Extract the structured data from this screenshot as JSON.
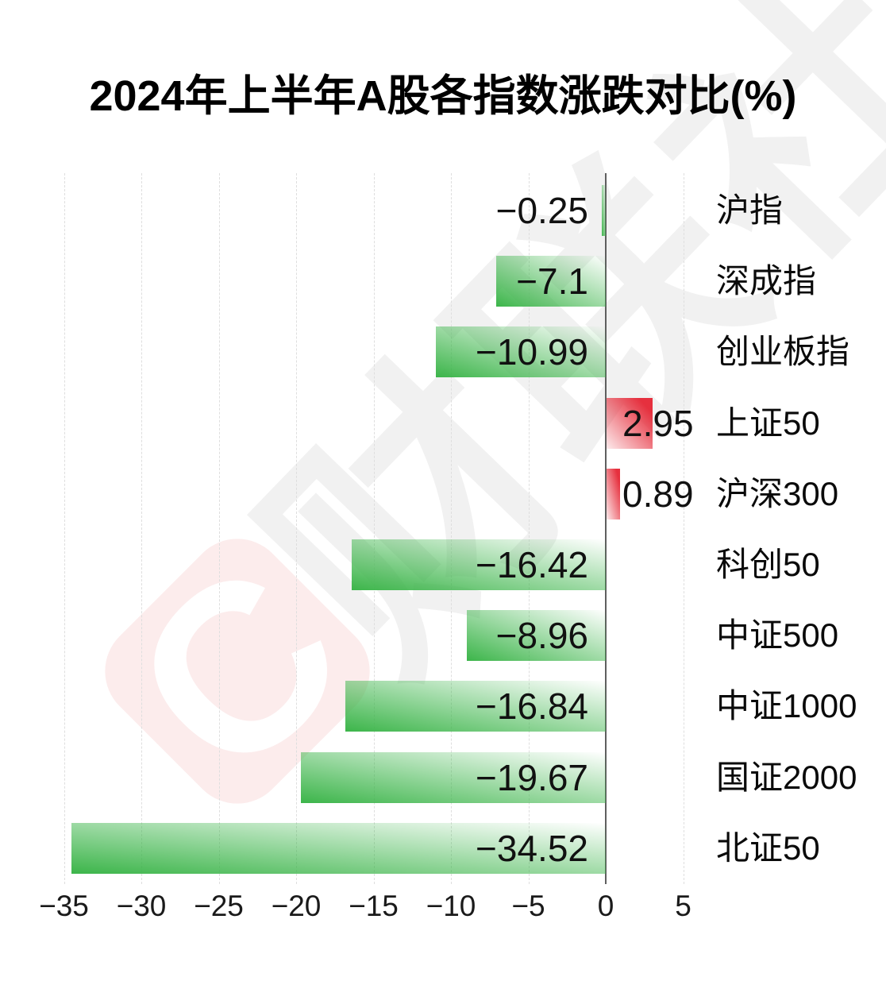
{
  "title": "2024年上半年A股各指数涨跌对比(%)",
  "watermark": {
    "logo_letter": "C",
    "text": "财联社"
  },
  "chart_data": {
    "type": "bar",
    "orientation": "horizontal",
    "title": "2024年上半年A股各指数涨跌对比(%)",
    "categories": [
      "沪指",
      "深成指",
      "创业板指",
      "上证50",
      "沪深300",
      "科创50",
      "中证500",
      "中证1000",
      "国证2000",
      "北证50"
    ],
    "values": [
      -0.25,
      -7.1,
      -10.99,
      2.95,
      0.89,
      -16.42,
      -8.96,
      -16.84,
      -19.67,
      -34.52
    ],
    "value_labels": [
      "−0.25",
      "−7.1",
      "−10.99",
      "2.95",
      "0.89",
      "−16.42",
      "−8.96",
      "−16.84",
      "−19.67",
      "−34.52"
    ],
    "x_ticks": [
      -35,
      -30,
      -25,
      -20,
      -15,
      -10,
      -5,
      0,
      5
    ],
    "x_tick_labels": [
      "−35",
      "−30",
      "−25",
      "−20",
      "−15",
      "−10",
      "−5",
      "0",
      "5"
    ],
    "xlim": [
      -35,
      5
    ],
    "xlabel": "",
    "ylabel": "",
    "grid": true,
    "legend": "none",
    "colors": {
      "bar_negative": "#3cb54a",
      "bar_negative_fade": "#ffffff",
      "bar_positive": "#e6303e",
      "bar_positive_fade": "#fbdfe0",
      "zero_line": "#5f5f5f",
      "gridline": "#dedede",
      "label_text": "#111111",
      "watermark_pink": "#fcecec",
      "watermark_gray": "#f1f1f1",
      "background": "#ffffff"
    }
  }
}
